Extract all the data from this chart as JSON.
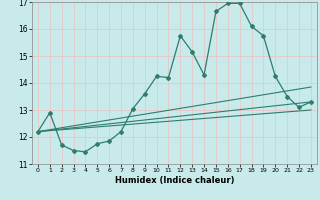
{
  "xlabel": "Humidex (Indice chaleur)",
  "bg_color": "#c8eaea",
  "grid_color": "#b8d8d8",
  "line_color": "#2e7d6e",
  "xlim": [
    -0.5,
    23.5
  ],
  "ylim": [
    11,
    17
  ],
  "xticks": [
    0,
    1,
    2,
    3,
    4,
    5,
    6,
    7,
    8,
    9,
    10,
    11,
    12,
    13,
    14,
    15,
    16,
    17,
    18,
    19,
    20,
    21,
    22,
    23
  ],
  "yticks": [
    11,
    12,
    13,
    14,
    15,
    16,
    17
  ],
  "series": [
    [
      0,
      12.2
    ],
    [
      1,
      12.9
    ],
    [
      2,
      11.7
    ],
    [
      3,
      11.5
    ],
    [
      4,
      11.45
    ],
    [
      5,
      11.75
    ],
    [
      6,
      11.85
    ],
    [
      7,
      12.2
    ],
    [
      8,
      13.05
    ],
    [
      9,
      13.6
    ],
    [
      10,
      14.25
    ],
    [
      11,
      14.2
    ],
    [
      12,
      15.75
    ],
    [
      13,
      15.15
    ],
    [
      14,
      14.3
    ],
    [
      15,
      16.65
    ],
    [
      16,
      16.95
    ],
    [
      17,
      16.95
    ],
    [
      18,
      16.1
    ],
    [
      19,
      15.75
    ],
    [
      20,
      14.25
    ],
    [
      21,
      13.5
    ],
    [
      22,
      13.1
    ],
    [
      23,
      13.3
    ]
  ],
  "trend_lines": [
    [
      [
        0,
        12.2
      ],
      [
        23,
        13.85
      ]
    ],
    [
      [
        0,
        12.2
      ],
      [
        23,
        13.3
      ]
    ],
    [
      [
        0,
        12.2
      ],
      [
        23,
        13.0
      ]
    ]
  ]
}
